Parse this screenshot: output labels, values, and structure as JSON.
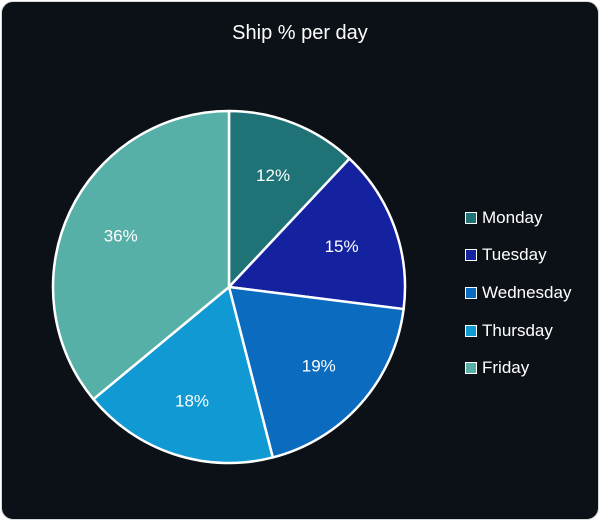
{
  "chart_data": {
    "type": "pie",
    "title": "Ship % per day",
    "categories": [
      "Monday",
      "Tuesday",
      "Wednesday",
      "Thursday",
      "Friday"
    ],
    "values": [
      12,
      15,
      19,
      18,
      36
    ],
    "data_labels": [
      "12%",
      "15%",
      "19%",
      "18%",
      "36%"
    ],
    "colors": [
      "#1f7376",
      "#1522a0",
      "#0b6bbf",
      "#1199d3",
      "#56b0a7"
    ],
    "legend_position": "right"
  }
}
